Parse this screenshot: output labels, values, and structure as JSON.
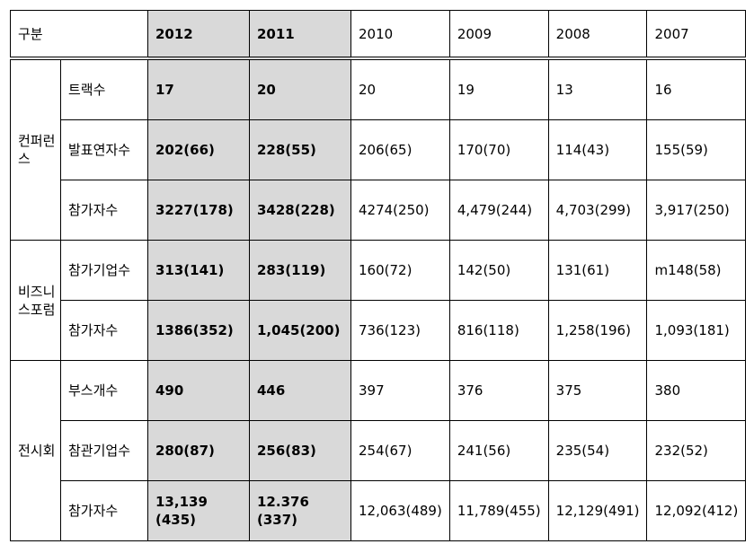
{
  "table": {
    "corner_label": "구분",
    "year_headers": [
      "2012",
      "2011",
      "2010",
      "2009",
      "2008",
      "2007"
    ],
    "groups": [
      {
        "name": "컨퍼런스",
        "rows": [
          {
            "label": "트랙수",
            "values": [
              "17",
              "20",
              "20",
              "19",
              "13",
              "16"
            ]
          },
          {
            "label": "발표연자수",
            "values": [
              "202(66)",
              "228(55)",
              "206(65)",
              "170(70)",
              "114(43)",
              "155(59)"
            ]
          },
          {
            "label": "참가자수",
            "values": [
              "3227(178)",
              "3428(228)",
              "4274(250)",
              "4,479(244)",
              "4,703(299)",
              "3,917(250)"
            ]
          }
        ]
      },
      {
        "name": "비즈니스포럼",
        "rows": [
          {
            "label": "참가기업수",
            "values": [
              "313(141)",
              "283(119)",
              "160(72)",
              "142(50)",
              "131(61)",
              "m148(58)"
            ]
          },
          {
            "label": "참가자수",
            "values": [
              "1386(352)",
              "1,045(200)",
              "736(123)",
              "816(118)",
              "1,258(196)",
              "1,093(181)"
            ]
          }
        ]
      },
      {
        "name": "전시회",
        "rows": [
          {
            "label": "부스개수",
            "values": [
              "490",
              "446",
              "397",
              "376",
              "375",
              "380"
            ]
          },
          {
            "label": "참관기업수",
            "values": [
              "280(87)",
              "256(83)",
              "254(67)",
              "241(56)",
              "235(54)",
              "232(52)"
            ]
          },
          {
            "label": "참가자수",
            "values": [
              "13,139 (435)",
              "12.376 (337)",
              "12,063(489)",
              "11,789(455)",
              "12,129(491)",
              "12,092(412)"
            ]
          }
        ]
      }
    ],
    "colors": {
      "highlight": "#d9d9d9",
      "border": "#000000"
    }
  }
}
